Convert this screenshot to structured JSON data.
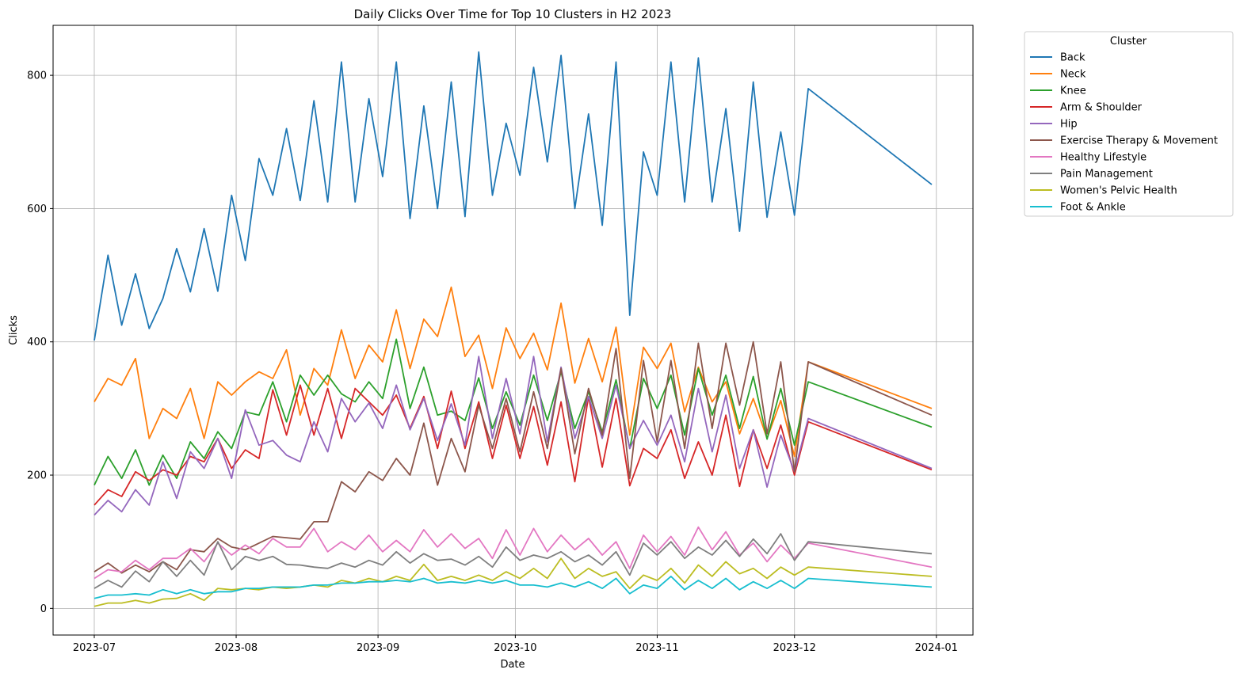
{
  "chart_data": {
    "type": "line",
    "title": "Daily Clicks Over Time for Top 10 Clusters in H2 2023",
    "xlabel": "Date",
    "ylabel": "Clicks",
    "x_start": "2023-07-01",
    "x_end": "2023-12-31",
    "x_step_days": 3,
    "xlim": [
      "2023-06-22",
      "2024-01-09"
    ],
    "ylim": [
      -40,
      875
    ],
    "x_ticks": [
      {
        "date": "2023-07-01",
        "label": "2023-07"
      },
      {
        "date": "2023-08-01",
        "label": "2023-08"
      },
      {
        "date": "2023-09-01",
        "label": "2023-09"
      },
      {
        "date": "2023-10-01",
        "label": "2023-10"
      },
      {
        "date": "2023-11-01",
        "label": "2023-11"
      },
      {
        "date": "2023-12-01",
        "label": "2023-12"
      },
      {
        "date": "2024-01-01",
        "label": "2024-01"
      }
    ],
    "y_ticks": [
      0,
      200,
      400,
      600,
      800
    ],
    "grid": true,
    "legend": {
      "title": "Cluster",
      "placement": "outside-top-right"
    },
    "series": [
      {
        "name": "Back",
        "color": "#1f77b4",
        "values": [
          402,
          530,
          425,
          502,
          420,
          465,
          540,
          475,
          570,
          476,
          620,
          522,
          675,
          620,
          720,
          612,
          762,
          610,
          820,
          610,
          765,
          648,
          820,
          585,
          754,
          600,
          790,
          588,
          835,
          620,
          728,
          650,
          812,
          670,
          830,
          600,
          742,
          575,
          820,
          440,
          685,
          620,
          820,
          610,
          826,
          610,
          750,
          566,
          790,
          587,
          715,
          590,
          780,
          636
        ]
      },
      {
        "name": "Neck",
        "color": "#ff7f0e",
        "values": [
          310,
          345,
          335,
          375,
          255,
          300,
          285,
          330,
          255,
          340,
          320,
          340,
          355,
          345,
          388,
          290,
          360,
          335,
          418,
          345,
          395,
          370,
          448,
          360,
          434,
          408,
          482,
          378,
          410,
          330,
          421,
          375,
          413,
          358,
          458,
          338,
          405,
          340,
          422,
          260,
          392,
          360,
          398,
          295,
          362,
          310,
          340,
          262,
          315,
          255,
          312,
          228,
          370,
          300
        ]
      },
      {
        "name": "Knee",
        "color": "#2ca02c",
        "values": [
          185,
          228,
          195,
          238,
          185,
          230,
          195,
          250,
          225,
          265,
          240,
          295,
          290,
          340,
          280,
          350,
          320,
          350,
          322,
          310,
          340,
          315,
          404,
          300,
          362,
          290,
          296,
          282,
          346,
          270,
          325,
          275,
          350,
          282,
          355,
          270,
          325,
          265,
          343,
          240,
          345,
          300,
          350,
          260,
          360,
          290,
          350,
          270,
          348,
          254,
          330,
          245,
          340,
          272
        ]
      },
      {
        "name": "Arm & Shoulder",
        "color": "#d62728",
        "values": [
          155,
          178,
          168,
          205,
          192,
          208,
          200,
          228,
          220,
          255,
          210,
          238,
          225,
          328,
          260,
          335,
          260,
          330,
          255,
          330,
          310,
          290,
          320,
          270,
          318,
          240,
          326,
          240,
          310,
          225,
          305,
          225,
          303,
          215,
          310,
          190,
          318,
          212,
          315,
          184,
          240,
          225,
          268,
          195,
          250,
          200,
          290,
          183,
          268,
          210,
          275,
          200,
          280,
          208
        ]
      },
      {
        "name": "Hip",
        "color": "#9467bd",
        "values": [
          140,
          162,
          145,
          178,
          155,
          220,
          165,
          235,
          210,
          255,
          195,
          298,
          245,
          252,
          230,
          220,
          280,
          235,
          315,
          280,
          308,
          270,
          335,
          268,
          315,
          252,
          307,
          245,
          378,
          255,
          345,
          262,
          378,
          250,
          362,
          255,
          318,
          255,
          335,
          240,
          282,
          245,
          290,
          220,
          330,
          235,
          320,
          210,
          268,
          182,
          260,
          205,
          285,
          210
        ]
      },
      {
        "name": "Exercise Therapy & Movement",
        "color": "#8c564b",
        "values": [
          55,
          68,
          53,
          65,
          55,
          70,
          58,
          88,
          85,
          105,
          92,
          88,
          98,
          108,
          106,
          104,
          130,
          130,
          190,
          175,
          205,
          192,
          225,
          200,
          278,
          185,
          255,
          205,
          305,
          240,
          315,
          235,
          325,
          240,
          360,
          232,
          330,
          260,
          390,
          195,
          372,
          250,
          372,
          240,
          398,
          270,
          398,
          305,
          400,
          262,
          370,
          205,
          370,
          290
        ]
      },
      {
        "name": "Healthy Lifestyle",
        "color": "#e377c2",
        "values": [
          45,
          58,
          55,
          72,
          58,
          75,
          75,
          90,
          70,
          98,
          80,
          95,
          82,
          105,
          92,
          92,
          120,
          85,
          100,
          88,
          110,
          85,
          102,
          85,
          118,
          92,
          112,
          90,
          105,
          75,
          118,
          80,
          120,
          85,
          110,
          88,
          105,
          80,
          100,
          60,
          110,
          85,
          108,
          80,
          122,
          88,
          115,
          80,
          98,
          70,
          95,
          75,
          98,
          62
        ]
      },
      {
        "name": "Pain Management",
        "color": "#7f7f7f",
        "values": [
          30,
          42,
          32,
          56,
          40,
          70,
          48,
          72,
          50,
          100,
          58,
          78,
          72,
          78,
          66,
          65,
          62,
          60,
          68,
          62,
          72,
          65,
          85,
          68,
          82,
          72,
          74,
          65,
          78,
          62,
          92,
          72,
          80,
          75,
          85,
          70,
          80,
          65,
          85,
          50,
          98,
          80,
          100,
          75,
          92,
          80,
          102,
          78,
          104,
          82,
          112,
          72,
          100,
          82
        ]
      },
      {
        "name": "Women's Pelvic Health",
        "color": "#bcbd22",
        "values": [
          3,
          8,
          8,
          12,
          8,
          14,
          15,
          22,
          12,
          30,
          28,
          30,
          28,
          32,
          30,
          32,
          35,
          32,
          42,
          38,
          45,
          40,
          48,
          42,
          66,
          42,
          48,
          42,
          50,
          42,
          55,
          45,
          60,
          45,
          75,
          45,
          60,
          48,
          55,
          30,
          50,
          42,
          60,
          38,
          65,
          48,
          70,
          52,
          60,
          45,
          62,
          50,
          62,
          48
        ]
      },
      {
        "name": "Foot & Ankle",
        "color": "#17becf",
        "values": [
          15,
          20,
          20,
          22,
          20,
          28,
          22,
          28,
          22,
          25,
          25,
          30,
          30,
          32,
          32,
          32,
          35,
          35,
          38,
          38,
          40,
          40,
          42,
          40,
          45,
          38,
          40,
          38,
          42,
          38,
          42,
          35,
          35,
          32,
          38,
          32,
          40,
          30,
          45,
          22,
          35,
          30,
          48,
          28,
          42,
          30,
          45,
          28,
          40,
          30,
          42,
          30,
          45,
          32
        ]
      }
    ]
  }
}
